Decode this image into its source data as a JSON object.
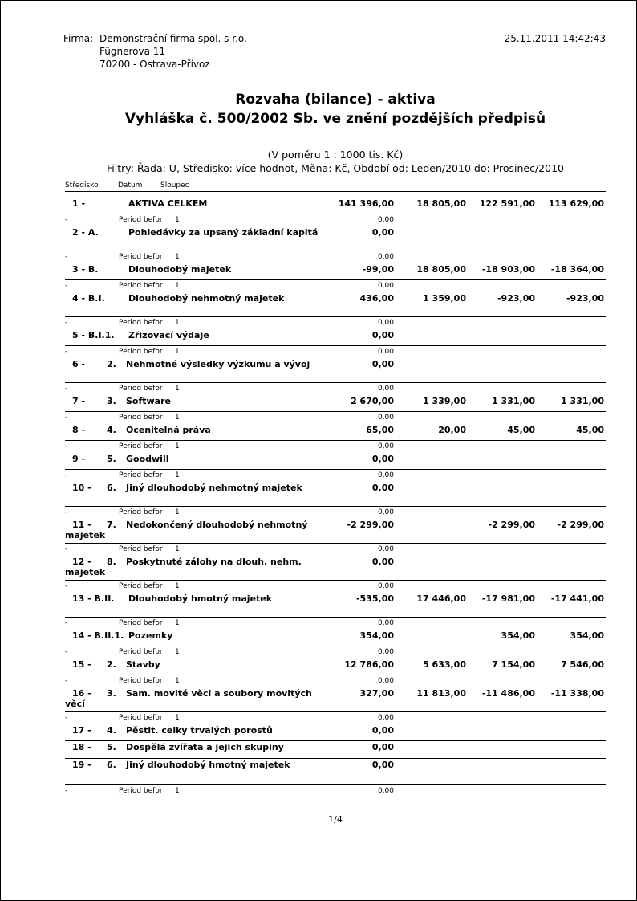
{
  "header": {
    "firm_label": "Firma:",
    "firm_lines": [
      "Demonstrační firma spol. s r.o.",
      "Fügnerova 11",
      "70200 - Ostrava-Přívoz"
    ],
    "timestamp": "25.11.2011 14:42:43"
  },
  "title": {
    "line1": "Rozvaha (bilance) - aktiva",
    "line2": "Vyhláška č. 500/2002 Sb. ve znění pozdějších předpisů"
  },
  "scale": "(V poměru 1 : 1000 tis. Kč)",
  "filters": "Filtry: Řada: U, Středisko: více hodnot, Měna: Kč, Období od: Leden/2010 do: Prosinec/2010",
  "columns": [
    "Středisko",
    "Datum",
    "Sloupec"
  ],
  "rows": [
    {
      "number": "1 -",
      "name": "AKTIVA CELKEM",
      "values": [
        "141 396,00",
        "18 805,00",
        "122 591,00",
        "113 629,00"
      ]
    },
    {
      "detail": {
        "dash": "-",
        "period": "Period befor",
        "column": "1",
        "value": "0,00"
      },
      "number": "2 - A.",
      "name": "Pohledávky za upsaný základní kapitá",
      "values": [
        "0,00"
      ]
    },
    {
      "detail": {
        "dash": "-",
        "period": "Period befor",
        "column": "1",
        "value": "0,00"
      },
      "number": "3 - B.",
      "name": "Dlouhodobý majetek",
      "values": [
        "-99,00",
        "18 805,00",
        "-18 903,00",
        "-18 364,00"
      ]
    },
    {
      "detail": {
        "dash": "-",
        "period": "Period befor",
        "column": "1",
        "value": "0,00"
      },
      "number": "4 - B.I.",
      "name": "Dlouhodobý nehmotný majetek",
      "values": [
        "436,00",
        "1 359,00",
        "-923,00",
        "-923,00"
      ]
    },
    {
      "detail": {
        "dash": "-",
        "period": "Period befor",
        "column": "1",
        "value": "0,00"
      },
      "number": "5 - B.I.1.",
      "name": "Zřizovací výdaje",
      "values": [
        "0,00"
      ]
    },
    {
      "detail": {
        "dash": "-",
        "period": "Period befor",
        "column": "1",
        "value": "0,00"
      },
      "number": "6 -",
      "sub": "2.",
      "name": "Nehmotné výsledky výzkumu a vývoj",
      "values": [
        "0,00"
      ]
    },
    {
      "detail": {
        "dash": "-",
        "period": "Period befor",
        "column": "1",
        "value": "0,00"
      },
      "number": "7 -",
      "sub": "3.",
      "name": "Software",
      "values": [
        "2 670,00",
        "1 339,00",
        "1 331,00",
        "1 331,00"
      ]
    },
    {
      "detail": {
        "dash": "-",
        "period": "Period befor",
        "column": "1",
        "value": "0,00"
      },
      "number": "8 -",
      "sub": "4.",
      "name": "Ocenitelná práva",
      "values": [
        "65,00",
        "20,00",
        "45,00",
        "45,00"
      ]
    },
    {
      "detail": {
        "dash": "-",
        "period": "Period befor",
        "column": "1",
        "value": "0,00"
      },
      "number": "9 -",
      "sub": "5.",
      "name": "Goodwill",
      "values": [
        "0,00"
      ]
    },
    {
      "detail": {
        "dash": "-",
        "period": "Period befor",
        "column": "1",
        "value": "0,00"
      },
      "number": "10 -",
      "sub": "6.",
      "name": "Jiný dlouhodobý nehmotný majetek",
      "values": [
        "0,00"
      ]
    },
    {
      "detail": {
        "dash": "-",
        "period": "Period befor",
        "column": "1",
        "value": "0,00"
      },
      "number": "11 -",
      "sub": "7.",
      "name": "Nedokončený dlouhodobý nehmotný majetek",
      "values": [
        "-2 299,00",
        null,
        "-2 299,00",
        "-2 299,00"
      ]
    },
    {
      "detail": {
        "dash": "-",
        "period": "Period befor",
        "column": "1",
        "value": "0,00"
      },
      "number": "12 -",
      "sub": "8.",
      "name": "Poskytnuté zálohy na dlouh. nehm. majetek",
      "values": [
        "0,00"
      ]
    },
    {
      "detail": {
        "dash": "-",
        "period": "Period befor",
        "column": "1",
        "value": "0,00"
      },
      "number": "13 - B.II.",
      "name": "Dlouhodobý hmotný majetek",
      "values": [
        "-535,00",
        "17 446,00",
        "-17 981,00",
        "-17 441,00"
      ]
    },
    {
      "detail": {
        "dash": "-",
        "period": "Period befor",
        "column": "1",
        "value": "0,00"
      },
      "number": "14 - B.II.1.",
      "name": "Pozemky",
      "values": [
        "354,00",
        null,
        "354,00",
        "354,00"
      ]
    },
    {
      "detail": {
        "dash": "-",
        "period": "Period befor",
        "column": "1",
        "value": "0,00"
      },
      "number": "15 -",
      "sub": "2.",
      "name": "Stavby",
      "values": [
        "12 786,00",
        "5 633,00",
        "7 154,00",
        "7 546,00"
      ]
    },
    {
      "detail": {
        "dash": "-",
        "period": "Period befor",
        "column": "1",
        "value": "0,00"
      },
      "number": "16 -",
      "sub": "3.",
      "name": "Sam. movité věci a soubory movitých věcí",
      "values": [
        "327,00",
        "11 813,00",
        "-11 486,00",
        "-11 338,00"
      ]
    },
    {
      "detail": {
        "dash": "-",
        "period": "Period befor",
        "column": "1",
        "value": "0,00"
      },
      "number": "17 -",
      "sub": "4.",
      "name": "Pěstit. celky trvalých porostů",
      "values": [
        "0,00"
      ]
    },
    {
      "number": "18 -",
      "sub": "5.",
      "name": "Dospělá zvířata a jejich skupiny",
      "values": [
        "0,00"
      ]
    },
    {
      "number": "19 -",
      "sub": "6.",
      "name": "Jiný dlouhodobý hmotný majetek",
      "values": [
        "0,00"
      ]
    }
  ],
  "trailing_detail": {
    "dash": "-",
    "period": "Period befor",
    "column": "1",
    "value": "0,00"
  },
  "page": "1/4"
}
